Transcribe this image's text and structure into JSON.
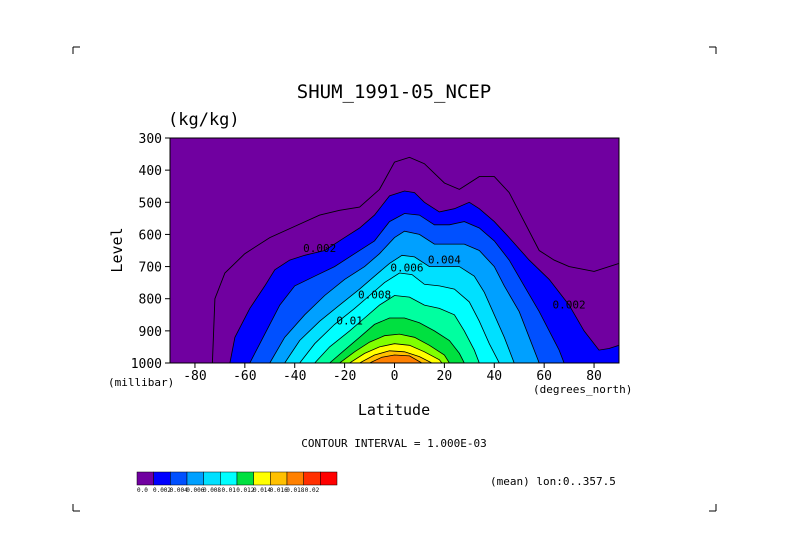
{
  "chart_data": {
    "type": "contour",
    "title": "SHUM_1991-05_NCEP",
    "units": "(kg/kg)",
    "xlabel": "Latitude",
    "ylabel": "Level",
    "x_unit": "(degrees_north)",
    "y_unit": "(millibar)",
    "xlim": [
      -90,
      90
    ],
    "ylim": [
      1000,
      300
    ],
    "y_reversed": true,
    "x_ticks": [
      -80,
      -60,
      -40,
      -20,
      0,
      20,
      40,
      60,
      80
    ],
    "y_ticks": [
      300,
      400,
      500,
      600,
      700,
      800,
      900,
      1000
    ],
    "contour_interval_text": "CONTOUR INTERVAL = 1.000E-03",
    "averaging_text": "(mean) lon:0..357.5",
    "contour_labels": [
      {
        "text": "0.002",
        "lat": -30,
        "level": 655
      },
      {
        "text": "0.004",
        "lat": 20,
        "level": 690
      },
      {
        "text": "0.006",
        "lat": 5,
        "level": 715
      },
      {
        "text": "0.008",
        "lat": -8,
        "level": 800
      },
      {
        "text": "0.01",
        "lat": -18,
        "level": 880
      },
      {
        "text": "0.002",
        "lat": 70,
        "level": 830
      }
    ],
    "fields": [
      {
        "threshold": 0.001,
        "color": "#0000ff",
        "points": [
          [
            -66,
            1000
          ],
          [
            -64,
            920
          ],
          [
            -58,
            830
          ],
          [
            -52,
            760
          ],
          [
            -48,
            710
          ],
          [
            -42,
            680
          ],
          [
            -36,
            665
          ],
          [
            -28,
            650
          ],
          [
            -20,
            610
          ],
          [
            -14,
            580
          ],
          [
            -8,
            540
          ],
          [
            -2,
            480
          ],
          [
            4,
            465
          ],
          [
            8,
            470
          ],
          [
            12,
            500
          ],
          [
            18,
            530
          ],
          [
            24,
            520
          ],
          [
            30,
            500
          ],
          [
            34,
            520
          ],
          [
            40,
            560
          ],
          [
            46,
            610
          ],
          [
            54,
            680
          ],
          [
            62,
            740
          ],
          [
            70,
            820
          ],
          [
            76,
            900
          ],
          [
            82,
            960
          ],
          [
            86,
            955
          ],
          [
            90,
            945
          ],
          [
            90,
            1000
          ]
        ]
      },
      {
        "threshold": 0.002,
        "color": "#0050ff",
        "points": [
          [
            -58,
            1000
          ],
          [
            -52,
            910
          ],
          [
            -46,
            820
          ],
          [
            -40,
            760
          ],
          [
            -32,
            730
          ],
          [
            -24,
            700
          ],
          [
            -16,
            660
          ],
          [
            -8,
            620
          ],
          [
            -2,
            560
          ],
          [
            4,
            535
          ],
          [
            10,
            540
          ],
          [
            16,
            570
          ],
          [
            22,
            570
          ],
          [
            28,
            560
          ],
          [
            34,
            580
          ],
          [
            40,
            620
          ],
          [
            46,
            680
          ],
          [
            52,
            760
          ],
          [
            58,
            840
          ],
          [
            62,
            900
          ],
          [
            66,
            960
          ],
          [
            68,
            1000
          ]
        ]
      },
      {
        "threshold": 0.003,
        "color": "#00a0ff",
        "points": [
          [
            -50,
            1000
          ],
          [
            -44,
            920
          ],
          [
            -36,
            850
          ],
          [
            -28,
            790
          ],
          [
            -20,
            740
          ],
          [
            -12,
            700
          ],
          [
            -6,
            660
          ],
          [
            0,
            610
          ],
          [
            4,
            590
          ],
          [
            10,
            600
          ],
          [
            16,
            630
          ],
          [
            22,
            630
          ],
          [
            28,
            630
          ],
          [
            34,
            650
          ],
          [
            40,
            700
          ],
          [
            44,
            760
          ],
          [
            50,
            840
          ],
          [
            54,
            920
          ],
          [
            58,
            1000
          ]
        ]
      },
      {
        "threshold": 0.004,
        "color": "#00e0ff",
        "points": [
          [
            -44,
            1000
          ],
          [
            -38,
            930
          ],
          [
            -30,
            870
          ],
          [
            -22,
            820
          ],
          [
            -14,
            770
          ],
          [
            -8,
            730
          ],
          [
            -2,
            690
          ],
          [
            3,
            665
          ],
          [
            8,
            670
          ],
          [
            14,
            700
          ],
          [
            20,
            700
          ],
          [
            26,
            700
          ],
          [
            32,
            730
          ],
          [
            36,
            780
          ],
          [
            40,
            850
          ],
          [
            44,
            920
          ],
          [
            48,
            1000
          ]
        ]
      },
      {
        "threshold": 0.005,
        "color": "#00ffff",
        "points": [
          [
            -38,
            1000
          ],
          [
            -32,
            940
          ],
          [
            -24,
            880
          ],
          [
            -16,
            830
          ],
          [
            -10,
            790
          ],
          [
            -4,
            750
          ],
          [
            2,
            720
          ],
          [
            7,
            725
          ],
          [
            12,
            755
          ],
          [
            18,
            760
          ],
          [
            24,
            770
          ],
          [
            30,
            810
          ],
          [
            34,
            870
          ],
          [
            38,
            940
          ],
          [
            42,
            1000
          ]
        ]
      },
      {
        "threshold": 0.006,
        "color": "#00ffa0",
        "points": [
          [
            -32,
            1000
          ],
          [
            -26,
            950
          ],
          [
            -18,
            900
          ],
          [
            -12,
            860
          ],
          [
            -6,
            820
          ],
          [
            0,
            790
          ],
          [
            6,
            795
          ],
          [
            12,
            820
          ],
          [
            18,
            830
          ],
          [
            24,
            850
          ],
          [
            28,
            900
          ],
          [
            32,
            960
          ],
          [
            34,
            1000
          ]
        ]
      },
      {
        "threshold": 0.008,
        "color": "#00e040",
        "points": [
          [
            -26,
            1000
          ],
          [
            -20,
            960
          ],
          [
            -14,
            920
          ],
          [
            -8,
            880
          ],
          [
            -2,
            860
          ],
          [
            4,
            860
          ],
          [
            10,
            875
          ],
          [
            16,
            900
          ],
          [
            22,
            930
          ],
          [
            26,
            970
          ],
          [
            28,
            1000
          ]
        ]
      },
      {
        "threshold": 0.009,
        "color": "#80ff00",
        "points": [
          [
            -22,
            1000
          ],
          [
            -16,
            965
          ],
          [
            -10,
            935
          ],
          [
            -4,
            915
          ],
          [
            2,
            910
          ],
          [
            8,
            920
          ],
          [
            14,
            945
          ],
          [
            20,
            975
          ],
          [
            22,
            1000
          ]
        ]
      },
      {
        "threshold": 0.01,
        "color": "#ffff00",
        "points": [
          [
            -18,
            1000
          ],
          [
            -12,
            970
          ],
          [
            -6,
            950
          ],
          [
            0,
            940
          ],
          [
            6,
            945
          ],
          [
            12,
            965
          ],
          [
            18,
            990
          ],
          [
            19,
            1000
          ]
        ]
      },
      {
        "threshold": 0.012,
        "color": "#ffc000",
        "points": [
          [
            -14,
            1000
          ],
          [
            -8,
            975
          ],
          [
            -2,
            962
          ],
          [
            4,
            965
          ],
          [
            10,
            980
          ],
          [
            15,
            1000
          ]
        ]
      },
      {
        "threshold": 0.014,
        "color": "#ff8000",
        "points": [
          [
            -10,
            1000
          ],
          [
            -5,
            982
          ],
          [
            0,
            975
          ],
          [
            6,
            978
          ],
          [
            11,
            1000
          ]
        ]
      }
    ],
    "outer_contours": [
      {
        "value": 0.001,
        "points": [
          [
            -73,
            1000
          ],
          [
            -72,
            800
          ],
          [
            -68,
            720
          ],
          [
            -60,
            660
          ],
          [
            -50,
            610
          ],
          [
            -40,
            575
          ],
          [
            -30,
            540
          ],
          [
            -22,
            525
          ],
          [
            -14,
            515
          ],
          [
            -6,
            460
          ],
          [
            0,
            375
          ],
          [
            6,
            360
          ],
          [
            12,
            380
          ],
          [
            20,
            440
          ],
          [
            26,
            460
          ],
          [
            34,
            420
          ],
          [
            40,
            420
          ],
          [
            46,
            470
          ],
          [
            52,
            560
          ],
          [
            58,
            650
          ],
          [
            64,
            680
          ],
          [
            70,
            700
          ],
          [
            80,
            715
          ],
          [
            90,
            690
          ]
        ]
      }
    ],
    "colorbar": {
      "colors": [
        "#7000a0",
        "#0000ff",
        "#0050ff",
        "#00a0ff",
        "#00e0ff",
        "#00ffff",
        "#00e040",
        "#ffff00",
        "#ffc000",
        "#ff8000",
        "#ff3000",
        "#ff0000"
      ],
      "labels": [
        "0.0",
        "0.002",
        "0.004",
        "0.006",
        "0.008",
        "0.01",
        "0.012",
        "0.014",
        "0.016",
        "0.018",
        "0.02"
      ]
    },
    "background_color": "#7000a0"
  }
}
